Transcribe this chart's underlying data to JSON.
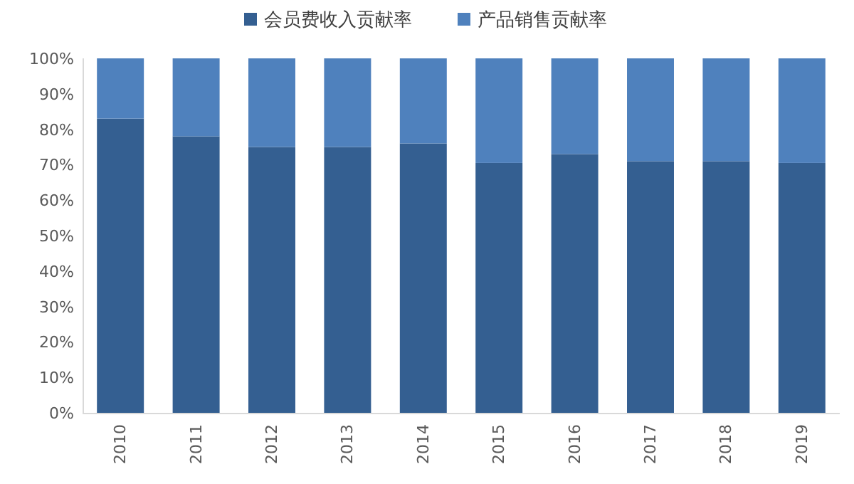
{
  "chart_data": {
    "type": "bar",
    "stacked": true,
    "categories": [
      "2010",
      "2011",
      "2012",
      "2013",
      "2014",
      "2015",
      "2016",
      "2017",
      "2018",
      "2019"
    ],
    "series": [
      {
        "name": "会员费收入贡献率",
        "color": "#345f91",
        "values": [
          83,
          78,
          75,
          75,
          76,
          70.5,
          73,
          71,
          71,
          70.5
        ]
      },
      {
        "name": "产品销售贡献率",
        "color": "#4f81bd",
        "values": [
          17,
          22,
          25,
          25,
          24,
          29.5,
          27,
          29,
          29,
          29.5
        ]
      }
    ],
    "ylim": [
      0,
      100
    ],
    "yticks": [
      {
        "value": 0,
        "label": "0%"
      },
      {
        "value": 10,
        "label": "10%"
      },
      {
        "value": 20,
        "label": "20%"
      },
      {
        "value": 30,
        "label": "30%"
      },
      {
        "value": 40,
        "label": "40%"
      },
      {
        "value": 50,
        "label": "50%"
      },
      {
        "value": 60,
        "label": "60%"
      },
      {
        "value": 70,
        "label": "70%"
      },
      {
        "value": 80,
        "label": "80%"
      },
      {
        "value": 90,
        "label": "90%"
      },
      {
        "value": 100,
        "label": "100%"
      }
    ],
    "legend": "top",
    "grid": false
  }
}
